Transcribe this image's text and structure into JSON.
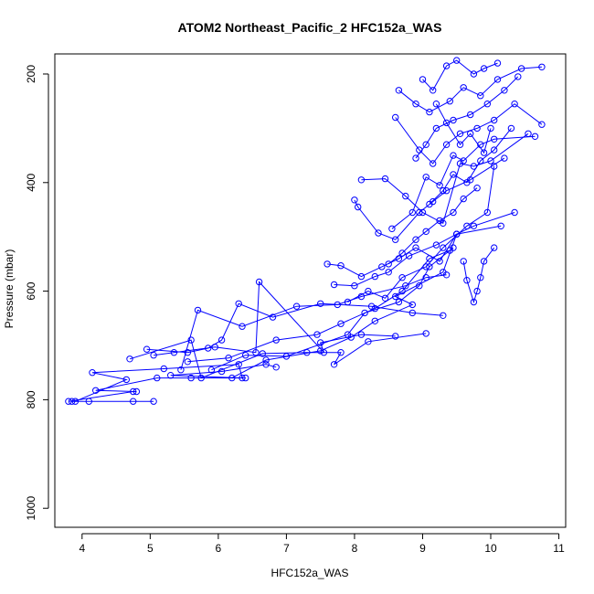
{
  "chart_data": {
    "type": "scatter",
    "title": "ATOM2 Northeast_Pacific_2 HFC152a_WAS",
    "xlabel": "HFC152a_WAS",
    "ylabel": "Pressure (mbar)",
    "xlim": [
      3.6,
      11.1
    ],
    "ylim": [
      1035,
      163
    ],
    "y_reversed": true,
    "x_ticks": [
      4,
      5,
      6,
      7,
      8,
      9,
      10,
      11
    ],
    "y_ticks": [
      200,
      400,
      600,
      800,
      1000
    ],
    "grid": false,
    "legend": "none",
    "color": "#0000ff",
    "marker": "open-circle",
    "connected": true,
    "series": [
      {
        "x": [
          3.85,
          4.1,
          4.75,
          5.05
        ],
        "y": [
          803,
          803,
          803,
          803
        ]
      },
      {
        "x": [
          3.8,
          4.75,
          4.8,
          4.2,
          5.1,
          5.6,
          6.4
        ],
        "y": [
          803,
          785,
          785,
          783,
          760,
          760,
          760
        ]
      },
      {
        "x": [
          3.9,
          4.65,
          4.15,
          5.2,
          6.3,
          6.35,
          5.3,
          6.05,
          6.7,
          6.85
        ],
        "y": [
          803,
          763,
          750,
          743,
          735,
          760,
          755,
          748,
          735,
          740
        ]
      },
      {
        "x": [
          4.7,
          5.6,
          5.75,
          6.65,
          7.3,
          7.8,
          7.7,
          8.2,
          9.05
        ],
        "y": [
          725,
          690,
          760,
          715,
          713,
          713,
          735,
          693,
          678
        ]
      },
      {
        "x": [
          5.05,
          5.35,
          5.95,
          6.55,
          6.6,
          7.55,
          7.5,
          8.1,
          8.6
        ],
        "y": [
          718,
          713,
          703,
          713,
          583,
          713,
          695,
          680,
          683
        ]
      },
      {
        "x": [
          4.95,
          5.55,
          5.85,
          6.05,
          6.3,
          6.8,
          7.5,
          8.25,
          8.85,
          9.3
        ],
        "y": [
          707,
          713,
          705,
          690,
          623,
          648,
          623,
          628,
          640,
          645
        ]
      },
      {
        "x": [
          5.45,
          5.7,
          6.35,
          7.15,
          7.75,
          8.1,
          8.75,
          9.05,
          9.35
        ],
        "y": [
          745,
          635,
          665,
          628,
          625,
          610,
          590,
          575,
          570
        ]
      },
      {
        "x": [
          5.55,
          6.15,
          6.85,
          7.45,
          7.8,
          8.3,
          8.7,
          9.1,
          9.4
        ],
        "y": [
          730,
          723,
          690,
          680,
          660,
          632,
          600,
          540,
          525
        ]
      },
      {
        "x": [
          5.9,
          6.4,
          7.0,
          7.9,
          8.15,
          8.65,
          8.95,
          9.1,
          9.45
        ],
        "y": [
          745,
          718,
          720,
          680,
          640,
          620,
          590,
          555,
          520
        ]
      },
      {
        "x": [
          6.2,
          6.7,
          7.5,
          7.95,
          8.3,
          8.85,
          8.6,
          9.3,
          9.5
        ],
        "y": [
          760,
          727,
          710,
          685,
          655,
          625,
          610,
          565,
          495
        ]
      },
      {
        "x": [
          7.6,
          7.8,
          8.1,
          8.4,
          8.65,
          8.9,
          9.25,
          9.5,
          10.15
        ],
        "y": [
          550,
          553,
          573,
          555,
          540,
          520,
          545,
          495,
          480
        ]
      },
      {
        "x": [
          7.7,
          8.0,
          8.3,
          8.5,
          8.8,
          9.2,
          9.5,
          9.75,
          10.35
        ],
        "y": [
          588,
          590,
          573,
          565,
          535,
          515,
          495,
          480,
          455
        ]
      },
      {
        "x": [
          7.9,
          8.2,
          8.45,
          8.7,
          9.05,
          9.3,
          9.65,
          9.95,
          10.05
        ],
        "y": [
          620,
          600,
          613,
          575,
          555,
          520,
          480,
          455,
          370
        ]
      },
      {
        "x": [
          8.0,
          8.05,
          8.35,
          8.6,
          8.95,
          9.15,
          9.35,
          9.7,
          10.2
        ],
        "y": [
          432,
          445,
          493,
          505,
          455,
          435,
          415,
          395,
          355
        ]
      },
      {
        "x": [
          8.1,
          8.45,
          8.75,
          9.0,
          9.3,
          9.55,
          9.75,
          10.0,
          10.55
        ],
        "y": [
          395,
          393,
          425,
          455,
          475,
          365,
          370,
          360,
          310
        ]
      },
      {
        "x": [
          8.55,
          8.85,
          9.05,
          9.25,
          9.45,
          9.6,
          9.85,
          10.05,
          10.65
        ],
        "y": [
          485,
          455,
          390,
          405,
          350,
          360,
          330,
          320,
          315
        ]
      },
      {
        "x": [
          8.6,
          8.95,
          9.15,
          9.35,
          9.55,
          9.8,
          10.05,
          10.35,
          10.75
        ],
        "y": [
          280,
          340,
          365,
          330,
          310,
          300,
          285,
          255,
          293
        ]
      },
      {
        "x": [
          8.65,
          8.9,
          9.1,
          9.4,
          9.6,
          9.85,
          10.1,
          10.45,
          10.75
        ],
        "y": [
          230,
          255,
          270,
          250,
          225,
          240,
          210,
          190,
          187
        ]
      },
      {
        "x": [
          8.9,
          9.05,
          9.2,
          9.45,
          9.7,
          9.95,
          10.2,
          10.4
        ],
        "y": [
          355,
          330,
          300,
          285,
          275,
          255,
          230,
          205
        ]
      },
      {
        "x": [
          9.0,
          9.15,
          9.35,
          9.5,
          9.75,
          9.9,
          10.1
        ],
        "y": [
          210,
          230,
          185,
          175,
          200,
          190,
          180
        ]
      },
      {
        "x": [
          9.2,
          9.35,
          9.55,
          9.7,
          9.9,
          10.0
        ],
        "y": [
          255,
          290,
          330,
          310,
          345,
          300
        ]
      },
      {
        "x": [
          9.1,
          9.3,
          9.45,
          9.65,
          9.85,
          10.05,
          10.3
        ],
        "y": [
          440,
          415,
          385,
          400,
          360,
          340,
          300
        ]
      },
      {
        "x": [
          8.5,
          8.7,
          8.9,
          9.05,
          9.25,
          9.45,
          9.6,
          9.8
        ],
        "y": [
          550,
          530,
          505,
          490,
          470,
          455,
          430,
          410
        ]
      },
      {
        "x": [
          9.6,
          9.65,
          9.75,
          9.8,
          9.85,
          9.9,
          10.05
        ],
        "y": [
          545,
          580,
          620,
          600,
          575,
          545,
          520
        ]
      }
    ]
  }
}
